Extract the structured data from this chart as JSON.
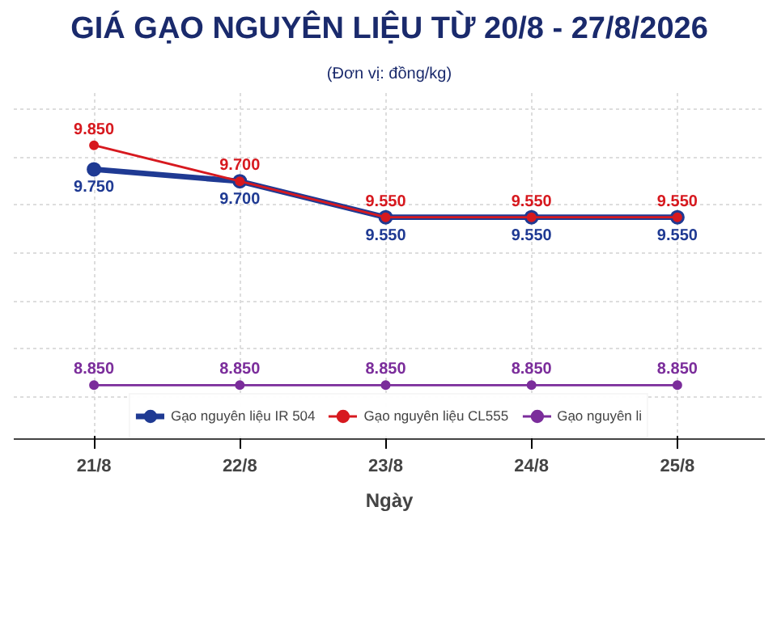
{
  "chart_data": {
    "type": "line",
    "title": "GIÁ GẠO NGUYÊN LIỆU TỪ 20/8 - 27/8/2026",
    "subtitle": "(Đơn vị: đồng/kg)",
    "xlabel": "Ngày",
    "categories": [
      "21/8",
      "22/8",
      "23/8",
      "24/8",
      "25/8"
    ],
    "series": [
      {
        "name": "Gạo nguyên liệu IR 504",
        "color": "#1f3a93",
        "values": [
          9750,
          9700,
          9550,
          9550,
          9550
        ],
        "value_labels": [
          "9.750",
          "9.700",
          "9.550",
          "9.550",
          "9.550"
        ]
      },
      {
        "name": "Gạo nguyên liệu CL555",
        "color": "#d7191f",
        "values": [
          9850,
          9700,
          9550,
          9550,
          9550
        ],
        "value_labels": [
          "9.850",
          "9.700",
          "9.550",
          "9.550",
          "9.550"
        ]
      },
      {
        "name": "Gạo nguyên li",
        "color": "#7b2d9b",
        "values": [
          8850,
          8850,
          8850,
          8850,
          8850
        ],
        "value_labels": [
          "8.850",
          "8.850",
          "8.850",
          "8.850",
          "8.850"
        ]
      }
    ],
    "marker": "circle",
    "line_style": "solid",
    "grid": true,
    "legend": "bottom",
    "tick_labels": "x"
  }
}
